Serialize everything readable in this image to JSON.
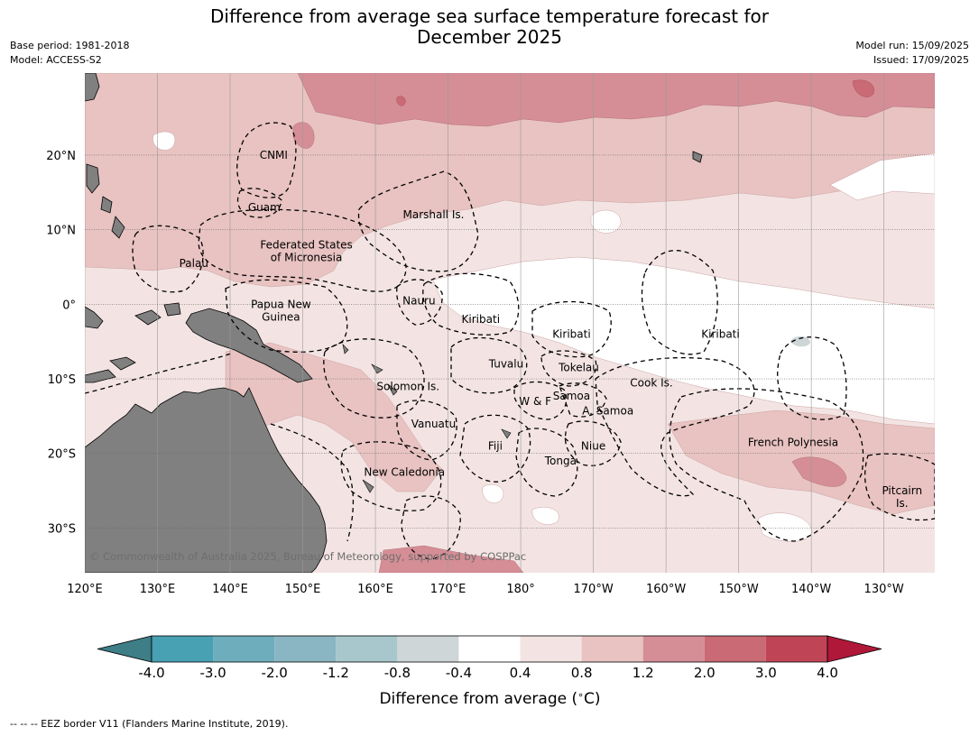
{
  "title_line1": "Difference from average sea surface temperature forecast for",
  "title_line2": "December 2025",
  "base_period": "Base period: 1981-2018",
  "model": "Model: ACCESS-S2",
  "model_run": "Model run: 15/09/2025",
  "issued": "Issued: 17/09/2025",
  "copyright": "© Commonwealth of Australia 2025, Bureau of Meteorology, supported by COSPPac",
  "footnote": "-- -- -- EEZ border V11 (Flanders Marine Institute, 2019).",
  "map": {
    "lon_ticks": [
      {
        "lon": 120,
        "label": "120°E"
      },
      {
        "lon": 130,
        "label": "130°E"
      },
      {
        "lon": 140,
        "label": "140°E"
      },
      {
        "lon": 150,
        "label": "150°E"
      },
      {
        "lon": 160,
        "label": "160°E"
      },
      {
        "lon": 170,
        "label": "170°E"
      },
      {
        "lon": 180,
        "label": "180°"
      },
      {
        "lon": 190,
        "label": "170°W"
      },
      {
        "lon": 200,
        "label": "160°W"
      },
      {
        "lon": 210,
        "label": "150°W"
      },
      {
        "lon": 220,
        "label": "140°W"
      },
      {
        "lon": 230,
        "label": "130°W"
      }
    ],
    "lat_ticks": [
      {
        "lat": 20,
        "label": "20°N"
      },
      {
        "lat": 10,
        "label": "10°N"
      },
      {
        "lat": 0,
        "label": "0°"
      },
      {
        "lat": -10,
        "label": "10°S"
      },
      {
        "lat": -20,
        "label": "20°S"
      },
      {
        "lat": -30,
        "label": "30°S"
      }
    ],
    "region_labels": [
      {
        "lines": [
          "CNMI"
        ],
        "lon": 146,
        "lat": 19.5
      },
      {
        "lines": [
          "Guam"
        ],
        "lon": 144.7,
        "lat": 12.5
      },
      {
        "lines": [
          "Marshall Is."
        ],
        "lon": 168,
        "lat": 11.5
      },
      {
        "lines": [
          "Federated States",
          "of Micronesia"
        ],
        "lon": 150.5,
        "lat": 7.5
      },
      {
        "lines": [
          "Palau"
        ],
        "lon": 135,
        "lat": 5
      },
      {
        "lines": [
          "Papua New",
          "Guinea"
        ],
        "lon": 147,
        "lat": -0.5
      },
      {
        "lines": [
          "Nauru"
        ],
        "lon": 166,
        "lat": 0
      },
      {
        "lines": [
          "Kiribati"
        ],
        "lon": 174.5,
        "lat": -2.5
      },
      {
        "lines": [
          "Kiribati"
        ],
        "lon": 187,
        "lat": -4.5
      },
      {
        "lines": [
          "Kiribati"
        ],
        "lon": 207.5,
        "lat": -4.5
      },
      {
        "lines": [
          "Tuvalu"
        ],
        "lon": 178,
        "lat": -8.5
      },
      {
        "lines": [
          "Tokelau"
        ],
        "lon": 188,
        "lat": -9
      },
      {
        "lines": [
          "Cook Is."
        ],
        "lon": 198,
        "lat": -11
      },
      {
        "lines": [
          "Solomon Is."
        ],
        "lon": 164.5,
        "lat": -11.5
      },
      {
        "lines": [
          "Samoa"
        ],
        "lon": 187,
        "lat": -12.8
      },
      {
        "lines": [
          "W & F"
        ],
        "lon": 182,
        "lat": -13.5
      },
      {
        "lines": [
          "A. Samoa"
        ],
        "lon": 192,
        "lat": -14.8
      },
      {
        "lines": [
          "Vanuatu"
        ],
        "lon": 168,
        "lat": -16.5
      },
      {
        "lines": [
          "French Polynesia"
        ],
        "lon": 217.5,
        "lat": -19
      },
      {
        "lines": [
          "Fiji"
        ],
        "lon": 176.5,
        "lat": -19.5
      },
      {
        "lines": [
          "Niue"
        ],
        "lon": 190,
        "lat": -19.5
      },
      {
        "lines": [
          "Tonga"
        ],
        "lon": 185.5,
        "lat": -21.5
      },
      {
        "lines": [
          "New Caledonia"
        ],
        "lon": 164,
        "lat": -23
      },
      {
        "lines": [
          "Pitcairn",
          "Is."
        ],
        "lon": 232.5,
        "lat": -25.5
      }
    ]
  },
  "colorbar": {
    "title": "Difference from average ($^\\circ$C)",
    "boundaries": [
      "-4.0",
      "-3.0",
      "-2.0",
      "-1.2",
      "-0.8",
      "-0.4",
      "0.4",
      "0.8",
      "1.2",
      "2.0",
      "3.0",
      "4.0"
    ],
    "colors": [
      "#3d7e87",
      "#48a0b3",
      "#6eadbc",
      "#8ab5c2",
      "#a7c7cc",
      "#cfd6d8",
      "#ffffff",
      "#f3e4e3",
      "#e8c3c1",
      "#d58e96",
      "#c96a74",
      "#bf4556",
      "#b0183a"
    ]
  },
  "colors": {
    "land": "#808080",
    "anom_0_4_0_8": "#f3e4e3",
    "anom_0_8_1_2": "#e8c3c1",
    "anom_1_2_2_0": "#d58e96",
    "anom_2_0_3_0": "#c96a74",
    "anom_neutral": "#ffffff",
    "anom_cool": "#cfd6d8"
  }
}
